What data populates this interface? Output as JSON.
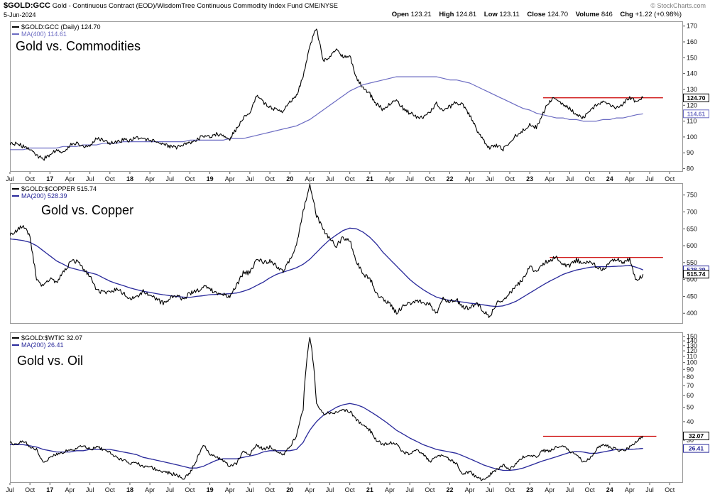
{
  "header": {
    "symbol": "$GOLD:GCC",
    "description": "Gold - Continuous Contract (EOD)/WisdomTree Continuous Commodity Index Fund",
    "exchange": "CME/NYSE",
    "copyright": "© StockCharts.com",
    "date": "5-Jun-2024",
    "quote": [
      {
        "label": "Open",
        "value": "123.21"
      },
      {
        "label": "High",
        "value": "124.81"
      },
      {
        "label": "Low",
        "value": "123.11"
      },
      {
        "label": "Close",
        "value": "124.70"
      },
      {
        "label": "Volume",
        "value": "846"
      },
      {
        "label": "Chg",
        "value": "+1.22 (+0.98%)"
      }
    ]
  },
  "x_axis": {
    "tick_labels": [
      "Jul",
      "Oct",
      "17",
      "Apr",
      "Jul",
      "Oct",
      "18",
      "Apr",
      "Jul",
      "Oct",
      "19",
      "Apr",
      "Jul",
      "Oct",
      "20",
      "Apr",
      "Jul",
      "Oct",
      "21",
      "Apr",
      "Jul",
      "Oct",
      "22",
      "Apr",
      "Jul",
      "Oct",
      "23",
      "Apr",
      "Jul",
      "Oct",
      "24",
      "Apr",
      "Jul",
      "Oct"
    ],
    "start": "Jul 2016",
    "months_total": 101
  },
  "chart_data": [
    {
      "type": "line",
      "title": "Gold vs. Commodities",
      "scale": "linear",
      "ylim": [
        78,
        173
      ],
      "y_ticks": [
        80,
        90,
        100,
        110,
        120,
        130,
        140,
        150,
        160,
        170
      ],
      "resistance_line": {
        "value": 124.7,
        "color": "#cc0000",
        "x_from_month": 80,
        "x_to_month": 98
      },
      "series": [
        {
          "role": "price",
          "name": "$GOLD:GCC (Daily)",
          "legend": "$GOLD:GCC (Daily) 124.70",
          "last_label": "124.70",
          "color": "#000000",
          "width": 1.1,
          "noise": 2.8,
          "values": [
            95,
            96,
            94,
            93,
            88,
            86,
            89,
            92,
            90,
            95,
            96,
            94,
            95,
            99,
            98,
            96,
            97,
            98,
            98,
            100,
            99,
            98,
            97,
            95,
            94,
            93,
            95,
            96,
            98,
            101,
            100,
            102,
            101,
            99,
            105,
            112,
            115,
            126,
            122,
            119,
            117,
            116,
            122,
            126,
            138,
            158,
            169,
            148,
            151,
            156,
            150,
            151,
            137,
            131,
            127,
            121,
            117,
            121,
            123,
            118,
            115,
            113,
            112,
            116,
            121,
            117,
            119,
            122,
            120,
            114,
            105,
            98,
            93,
            95,
            92,
            97,
            101,
            104,
            108,
            106,
            115,
            123,
            125,
            120,
            118,
            114,
            112,
            117,
            120,
            123,
            120,
            118,
            121,
            125,
            122,
            124.7
          ]
        },
        {
          "role": "ma",
          "name": "MA(400)",
          "legend": "MA(400) 114.61",
          "last_label": "114.61",
          "color": "#6b6bc2",
          "width": 1.2,
          "noise": 0,
          "values": [
            92,
            92,
            92,
            93,
            93,
            93,
            93,
            93,
            94,
            94,
            94,
            95,
            95,
            95,
            96,
            96,
            96,
            97,
            97,
            97,
            97,
            97,
            97,
            97,
            97,
            97,
            97,
            98,
            98,
            98,
            98,
            98,
            98,
            99,
            99,
            99,
            100,
            101,
            102,
            103,
            104,
            105,
            106,
            107,
            109,
            111,
            114,
            117,
            120,
            123,
            126,
            129,
            131,
            133,
            134,
            135,
            136,
            137,
            138,
            138,
            138,
            138,
            138,
            138,
            138,
            137,
            136,
            136,
            135,
            134,
            132,
            130,
            128,
            126,
            124,
            122,
            120,
            118,
            117,
            115,
            114,
            113,
            112,
            112,
            111,
            111,
            110,
            110,
            110,
            111,
            111,
            112,
            112,
            113,
            114,
            114.61
          ]
        }
      ]
    },
    {
      "type": "line",
      "title": "Gold vs. Copper",
      "scale": "linear",
      "ylim": [
        369,
        785
      ],
      "y_ticks": [
        400,
        450,
        500,
        550,
        600,
        650,
        700,
        750
      ],
      "resistance_line": {
        "value": 565,
        "color": "#cc0000",
        "x_from_month": 81,
        "x_to_month": 98
      },
      "series": [
        {
          "role": "price",
          "name": "$GOLD:$COPPER",
          "legend": "$GOLD:$COPPER 515.74",
          "last_label": "515.74",
          "color": "#000000",
          "width": 1.1,
          "noise": 3.2,
          "values": [
            630,
            645,
            660,
            630,
            500,
            480,
            500,
            490,
            520,
            550,
            555,
            530,
            510,
            470,
            460,
            465,
            470,
            460,
            440,
            450,
            465,
            455,
            440,
            430,
            445,
            455,
            440,
            460,
            465,
            480,
            470,
            460,
            455,
            450,
            480,
            520,
            520,
            560,
            550,
            555,
            540,
            525,
            560,
            600,
            700,
            780,
            690,
            650,
            620,
            600,
            625,
            615,
            555,
            515,
            505,
            460,
            440,
            430,
            400,
            420,
            430,
            440,
            430,
            425,
            400,
            445,
            435,
            440,
            420,
            415,
            430,
            408,
            390,
            430,
            440,
            460,
            480,
            500,
            540,
            520,
            548,
            558,
            565,
            545,
            540,
            558,
            545,
            552,
            540,
            530,
            548,
            562,
            552,
            560,
            495,
            515.74
          ]
        },
        {
          "role": "ma",
          "name": "MA(200)",
          "legend": "MA(200) 528.39",
          "last_label": "528.39",
          "color": "#28289a",
          "width": 1.3,
          "noise": 0,
          "values": [
            620,
            618,
            615,
            610,
            600,
            585,
            570,
            555,
            545,
            535,
            530,
            525,
            520,
            515,
            505,
            495,
            488,
            482,
            475,
            470,
            465,
            462,
            458,
            455,
            452,
            450,
            448,
            447,
            450,
            452,
            455,
            456,
            457,
            458,
            460,
            465,
            472,
            482,
            492,
            505,
            515,
            522,
            528,
            535,
            545,
            560,
            580,
            600,
            618,
            632,
            645,
            652,
            650,
            640,
            625,
            605,
            580,
            560,
            540,
            520,
            500,
            484,
            470,
            458,
            448,
            442,
            438,
            436,
            433,
            430,
            428,
            425,
            422,
            420,
            422,
            428,
            436,
            448,
            460,
            472,
            484,
            495,
            505,
            515,
            522,
            528,
            532,
            536,
            538,
            538,
            538,
            539,
            540,
            542,
            536,
            528.39
          ]
        }
      ]
    },
    {
      "type": "line",
      "title": "Gold vs. Oil",
      "scale": "log",
      "ylim": [
        15.5,
        160
      ],
      "y_ticks": [
        30,
        40,
        50,
        60,
        70,
        80,
        90,
        100,
        110,
        120,
        130,
        140,
        150
      ],
      "resistance_line": {
        "value": 31.9,
        "color": "#cc0000",
        "x_from_month": 80,
        "x_to_month": 97
      },
      "series": [
        {
          "role": "price",
          "name": "$GOLD:$WTIC",
          "legend": "$GOLD:$WTIC 32.07",
          "last_label": "32.07",
          "color": "#000000",
          "width": 1.1,
          "noise": 2.2,
          "values": [
            29,
            28,
            30,
            27,
            26,
            21,
            23,
            24,
            25,
            26,
            26,
            28,
            26,
            27,
            26,
            25,
            23,
            22,
            21,
            21,
            20,
            20,
            19,
            18.5,
            18,
            17.5,
            16.5,
            18,
            22,
            28,
            24,
            23,
            22,
            20,
            21,
            25,
            24,
            28,
            26,
            27,
            25,
            24,
            27,
            32,
            48,
            150,
            52,
            45,
            46,
            46,
            48,
            47,
            41,
            38,
            35,
            30,
            28,
            29,
            28,
            25,
            24,
            26,
            24,
            21.5,
            23,
            24,
            22,
            21,
            17.5,
            18.5,
            16.8,
            16.2,
            17.5,
            19,
            20.5,
            19,
            21,
            23,
            24,
            23,
            25.5,
            25.5,
            27,
            27.5,
            25,
            24,
            21.5,
            22.5,
            26,
            28.5,
            27,
            26,
            25.5,
            27,
            29.5,
            32.07
          ]
        },
        {
          "role": "ma",
          "name": "MA(200)",
          "legend": "MA(200) 26.41",
          "last_label": "26.41",
          "color": "#28289a",
          "width": 1.3,
          "noise": 0,
          "values": [
            28,
            28,
            28,
            27.5,
            27,
            26,
            25.5,
            25,
            25,
            25,
            25.5,
            25.5,
            26,
            26,
            26,
            26,
            25.5,
            25,
            24.5,
            24,
            23,
            22.5,
            22,
            21.5,
            21,
            20.5,
            20,
            19.5,
            19.5,
            20,
            21,
            22,
            22.5,
            22.5,
            22.5,
            23,
            23.5,
            24,
            25,
            25.5,
            25.5,
            25.5,
            25.5,
            26,
            29,
            35,
            40,
            44,
            47,
            50,
            52,
            53,
            52,
            50,
            47,
            44,
            41,
            38,
            35,
            33,
            31,
            29.5,
            28,
            27,
            26,
            25.5,
            25,
            24.5,
            23.5,
            22.5,
            21.5,
            20.5,
            19.8,
            19.2,
            18.8,
            18.8,
            19,
            19.5,
            20.2,
            21,
            21.8,
            22.5,
            23.2,
            24,
            24.8,
            25.2,
            25,
            24.5,
            24.5,
            25,
            25.5,
            26,
            26,
            26,
            26.2,
            26.41
          ]
        }
      ]
    }
  ]
}
